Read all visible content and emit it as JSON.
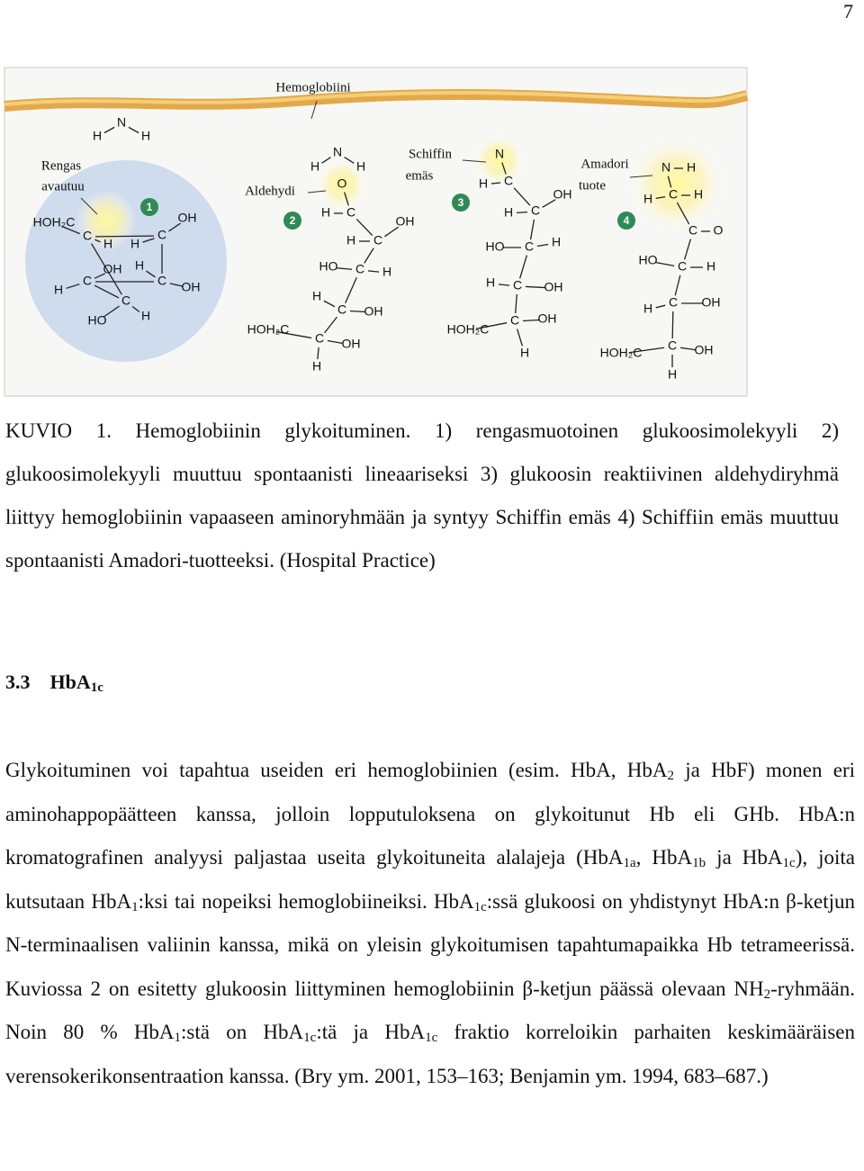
{
  "page_number": "7",
  "figure": {
    "chain_label": "Hemoglobiini",
    "labels": [
      "Rengas",
      "avautuu",
      "Aldehydi",
      "Schiffin",
      "emäs",
      "Amadori",
      "tuote"
    ],
    "steps": [
      "1",
      "2",
      "3",
      "4"
    ],
    "amines": [
      [
        "H",
        "N",
        "H"
      ],
      [
        "H",
        "N",
        "H"
      ]
    ],
    "molecules": [
      [
        "HOH₂C",
        "C",
        "H",
        "C",
        "OH",
        "H",
        "C",
        "OH",
        "C",
        "H",
        "HO",
        "C",
        "OH",
        "H",
        "H"
      ],
      [
        "O",
        "H",
        "C",
        "OH",
        "H",
        "C",
        "HO",
        "C",
        "H",
        "H",
        "C",
        "OH",
        "HOH₂C",
        "C",
        "OH",
        "H"
      ],
      [
        "N",
        "H",
        "C",
        "OH",
        "H",
        "C",
        "HO",
        "C",
        "H",
        "H",
        "C",
        "OH",
        "HOH₂C",
        "C",
        "OH",
        "H"
      ],
      [
        "N",
        "H",
        "H",
        "C",
        "H",
        "C",
        "O",
        "HO",
        "C",
        "H",
        "H",
        "C",
        "OH",
        "HOH₂C",
        "C",
        "OH",
        "H"
      ]
    ]
  },
  "caption": "KUVIO 1. Hemoglobiinin glykoituminen. 1) rengasmuotoinen glukoosimolekyyli 2) glukoosimolekyyli muuttuu spontaanisti lineaariseksi 3) glukoosin reaktiivinen aldehydiryhmä liittyy hemoglobiinin vapaaseen aminoryhmään ja syntyy Schiffin emäs 4) Schiffiin emäs muuttuu spontaanisti Amadori-tuotteeksi. (Hospital Practice)",
  "heading": {
    "number": "3.3",
    "text": "HbA",
    "sub": "1c"
  },
  "body": [
    "Glykoituminen voi tapahtua useiden eri hemoglobiinien (esim. HbA, HbA",
    {
      "sub": "2"
    },
    " ja HbF) monen eri aminohappopäätteen kanssa, jolloin lopputuloksena on glykoitunut Hb eli GHb. HbA:n kromatografinen analyysi paljastaa useita glykoituneita alalajeja (HbA",
    {
      "sub": "1a"
    },
    ", HbA",
    {
      "sub": "1b"
    },
    " ja HbA",
    {
      "sub": "1c"
    },
    "), joita kutsutaan HbA",
    {
      "sub": "1"
    },
    ":ksi tai nopeiksi hemoglobiineiksi. HbA",
    {
      "sub": "1c"
    },
    ":ssä glukoosi on yhdistynyt HbA:n β-ketjun N-terminaalisen valiinin kanssa, mikä on yleisin glykoitumisen tapahtumapaikka Hb tetrameerissä. Kuviossa 2 on esitetty glukoosin liittyminen hemoglobiinin β-ketjun päässä olevaan NH",
    {
      "sub": "2"
    },
    "-ryhmään. Noin 80 % HbA",
    {
      "sub": "1"
    },
    ":stä on HbA",
    {
      "sub": "1c"
    },
    ":tä ja HbA",
    {
      "sub": "1c"
    },
    " fraktio korreloikin parhaiten keskimääräisen verensokerikonsentraation kanssa. (Bry ym. 2001, 153–163; Benjamin ym. 1994, 683–687.)"
  ]
}
